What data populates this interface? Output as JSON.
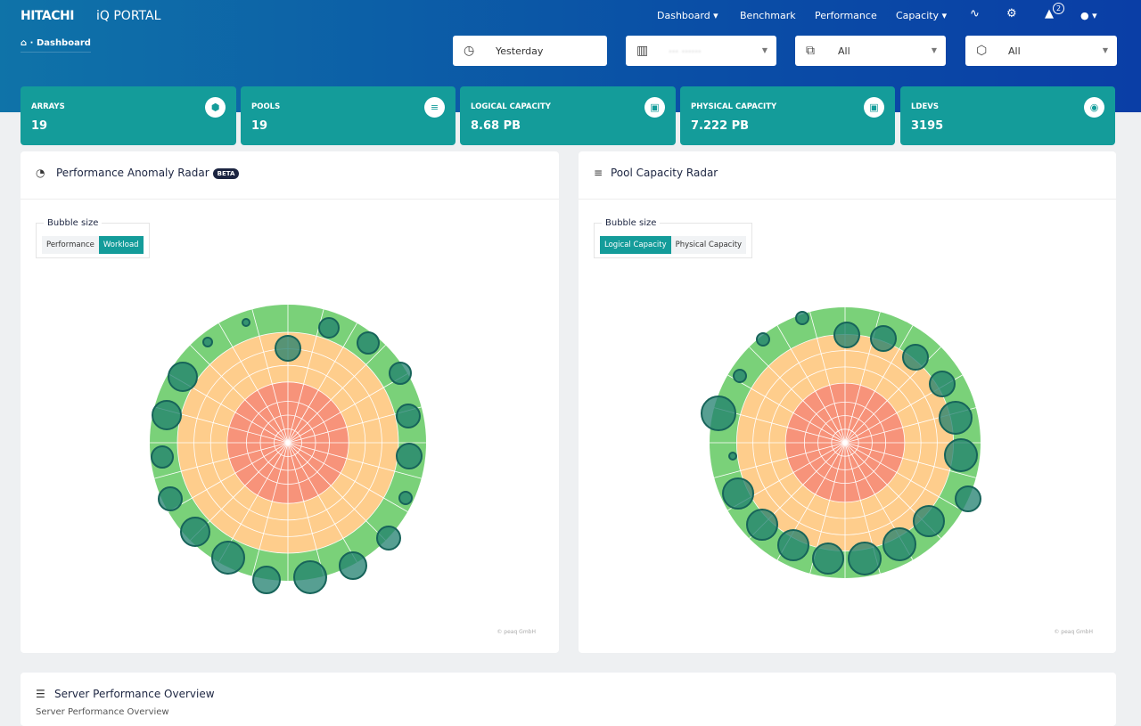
{
  "header": {
    "brand": "HITACHI",
    "product": "iQ PORTAL",
    "breadcrumb": {
      "home_icon": "home-icon",
      "current": "Dashboard"
    }
  },
  "nav": {
    "items": [
      {
        "label": "Dashboard ▾"
      },
      {
        "label": "Benchmark"
      },
      {
        "label": "Performance"
      },
      {
        "label": "Capacity ▾"
      }
    ],
    "alert_count": "2"
  },
  "filters": {
    "time": "Yesterday",
    "site": "⋯ ⋯⋯",
    "group": "All",
    "array": "All"
  },
  "stats": [
    {
      "label": "ARRAYS",
      "value": "19"
    },
    {
      "label": "POOLS",
      "value": "19"
    },
    {
      "label": "LOGICAL CAPACITY",
      "value": "8.68 PB"
    },
    {
      "label": "PHYSICAL CAPACITY",
      "value": "7.222 PB"
    },
    {
      "label": "LDEVS",
      "value": "3195"
    }
  ],
  "perf_radar": {
    "title": "Performance Anomaly Radar",
    "badge": "BETA",
    "bubble_label": "Bubble size",
    "options": [
      "Performance",
      "Workload"
    ],
    "selected": "Workload",
    "copyright": "© peaq GmbH"
  },
  "pool_radar": {
    "title": "Pool Capacity Radar",
    "bubble_label": "Bubble size",
    "options": [
      "Logical Capacity",
      "Physical Capacity"
    ],
    "selected": "Logical Capacity",
    "copyright": "© peaq GmbH"
  },
  "server": {
    "title": "Server Performance Overview",
    "subtitle": "Server Performance Overview"
  },
  "colors": {
    "teal": "#149c9a",
    "green": "#7ad179",
    "orange": "#fecd8c",
    "red": "#f7937a",
    "bubble": "#1f7f6e"
  }
}
